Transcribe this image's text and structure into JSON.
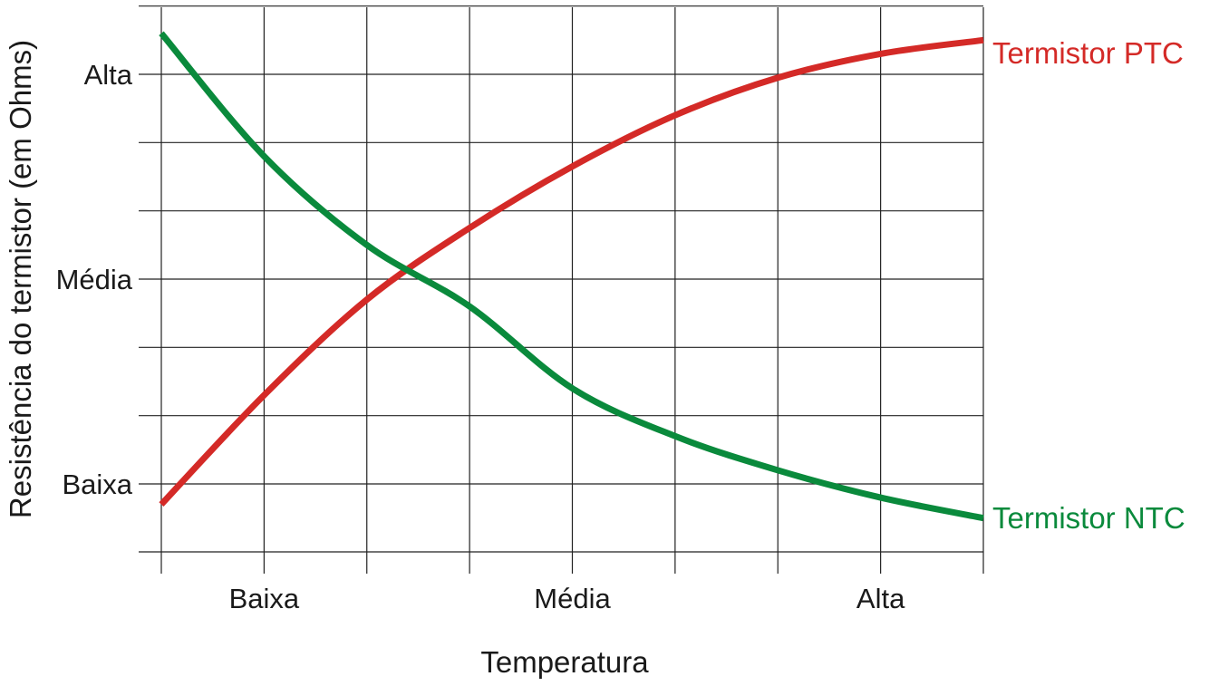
{
  "chart_data": {
    "type": "line",
    "xlabel": "Temperatura",
    "ylabel": "Resistência do termistor (em Ohms)",
    "x_tick_labels": [
      "Baixa",
      "Média",
      "Alta"
    ],
    "y_tick_labels": [
      "Alta",
      "Média",
      "Baixa"
    ],
    "xlim": [
      0,
      8
    ],
    "ylim": [
      -0.5,
      7.2
    ],
    "grid": true,
    "x_ticks": [
      0,
      1,
      2,
      3,
      4,
      5,
      6,
      7,
      8
    ],
    "y_ticks": [
      0,
      1,
      2,
      3,
      4,
      5,
      6,
      7
    ],
    "x_tick_label_positions": [
      1,
      4,
      7
    ],
    "y_tick_label_positions": [
      6,
      3,
      0
    ],
    "series": [
      {
        "name": "Termistor PTC",
        "color": "#d42a27",
        "points": [
          [
            0,
            -0.3
          ],
          [
            1,
            1.3
          ],
          [
            2,
            2.7
          ],
          [
            3,
            3.75
          ],
          [
            4,
            4.65
          ],
          [
            5,
            5.4
          ],
          [
            6,
            5.95
          ],
          [
            7,
            6.3
          ],
          [
            8,
            6.5
          ]
        ]
      },
      {
        "name": "Termistor NTC",
        "color": "#0a8a3c",
        "points": [
          [
            0,
            6.6
          ],
          [
            1,
            4.8
          ],
          [
            2,
            3.5
          ],
          [
            3,
            2.6
          ],
          [
            4,
            1.4
          ],
          [
            5,
            0.7
          ],
          [
            6,
            0.2
          ],
          [
            7,
            -0.2
          ],
          [
            8,
            -0.5
          ]
        ]
      }
    ]
  }
}
